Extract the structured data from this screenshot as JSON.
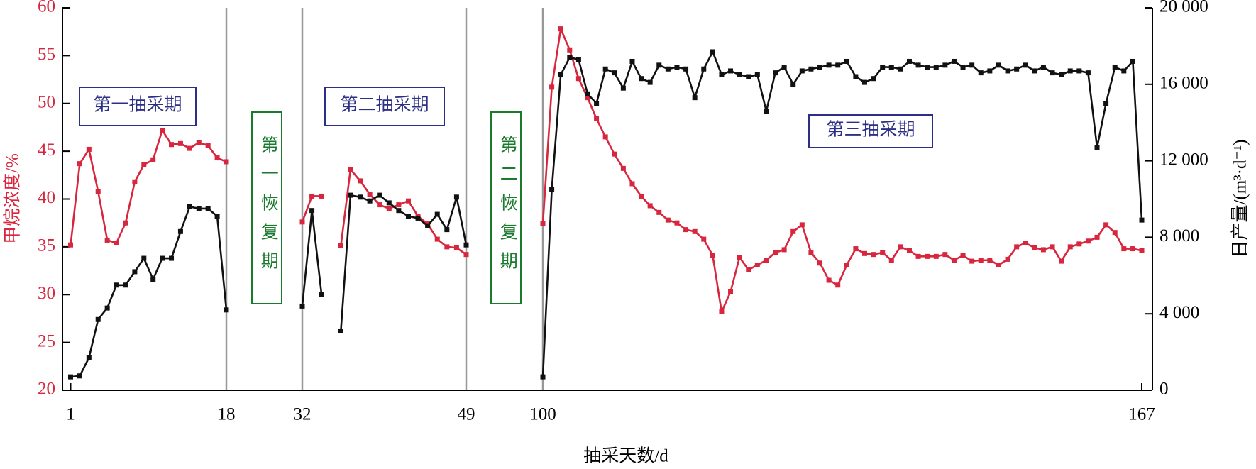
{
  "chart_data": {
    "type": "line",
    "x_label": "抽采天数/d",
    "y_label": "甲烷浓度/%",
    "y2_label": "日产量/(m³·d⁻¹)",
    "x": [
      1,
      2,
      3,
      4,
      5,
      6,
      7,
      8,
      9,
      10,
      11,
      12,
      13,
      14,
      15,
      16,
      17,
      18,
      32,
      33,
      34,
      35,
      36,
      37,
      38,
      39,
      40,
      41,
      42,
      43,
      44,
      45,
      46,
      47,
      48,
      49,
      100,
      101,
      102,
      103,
      104,
      105,
      106,
      107,
      108,
      109,
      110,
      111,
      112,
      113,
      114,
      115,
      116,
      117,
      118,
      119,
      120,
      121,
      122,
      123,
      124,
      125,
      126,
      127,
      128,
      129,
      130,
      131,
      132,
      133,
      134,
      135,
      136,
      137,
      138,
      139,
      140,
      141,
      142,
      143,
      144,
      145,
      146,
      147,
      148,
      149,
      150,
      151,
      152,
      153,
      154,
      155,
      156,
      157,
      158,
      159,
      160,
      161,
      162,
      163,
      164,
      165,
      166,
      167
    ],
    "xticks": [
      1,
      18,
      32,
      49,
      100,
      167
    ],
    "ylim": [
      20,
      60
    ],
    "yticks": [
      20,
      25,
      30,
      35,
      40,
      45,
      50,
      55,
      60
    ],
    "y2lim": [
      0,
      20000
    ],
    "y2ticks": [
      0,
      {
        "value": 4000,
        "label": "4 000"
      },
      {
        "value": 8000,
        "label": "8 000"
      },
      {
        "value": 12000,
        "label": "12 000"
      },
      {
        "value": 16000,
        "label": "16 000"
      },
      {
        "value": 20000,
        "label": "20 000"
      }
    ],
    "y_color": "#d7263d",
    "series": [
      {
        "color": "#d7263d",
        "values": [
          35.2,
          43.7,
          45.2,
          40.8,
          35.7,
          35.4,
          37.5,
          41.8,
          43.6,
          44.1,
          47.2,
          45.7,
          45.8,
          45.3,
          45.9,
          45.6,
          44.3,
          43.9,
          37.6,
          40.3,
          40.3,
          null,
          35.1,
          43.1,
          41.9,
          40.5,
          39.4,
          39.0,
          39.4,
          39.8,
          38.2,
          37.4,
          35.8,
          35.0,
          34.9,
          34.2,
          37.4,
          51.7,
          57.8,
          55.6,
          52.6,
          50.6,
          48.4,
          46.5,
          44.7,
          43.2,
          41.6,
          40.3,
          39.3,
          38.6,
          37.8,
          37.5,
          36.8,
          36.6,
          35.8,
          34.1,
          28.2,
          30.3,
          33.9,
          32.6,
          33.1,
          33.6,
          34.4,
          34.7,
          36.6,
          37.3,
          34.4,
          33.3,
          31.5,
          31.0,
          33.1,
          34.8,
          34.3,
          34.2,
          34.4,
          33.6,
          35.0,
          34.6,
          34.0,
          34.0,
          34.0,
          34.2,
          33.6,
          34.1,
          33.5,
          33.6,
          33.6,
          33.1,
          33.7,
          35.0,
          35.4,
          34.9,
          34.7,
          35.0,
          33.5,
          35.0,
          35.3,
          35.6,
          36.0,
          37.3,
          36.5,
          34.8,
          34.8,
          34.6
        ]
      },
      {
        "color": "#111111",
        "axis": "y2",
        "values": [
          700,
          750,
          1700,
          3700,
          4300,
          5500,
          5500,
          6200,
          6900,
          5800,
          6900,
          6900,
          8300,
          9600,
          9500,
          9500,
          9100,
          4200,
          4400,
          9400,
          5000,
          null,
          3100,
          10200,
          10100,
          9900,
          10200,
          9800,
          9400,
          9100,
          9000,
          8600,
          9200,
          8400,
          10100,
          7600,
          700,
          10500,
          16500,
          17400,
          17300,
          15500,
          15000,
          16800,
          16600,
          15800,
          17200,
          16300,
          16100,
          17000,
          16800,
          16900,
          16800,
          15300,
          16800,
          17700,
          16500,
          16700,
          16500,
          16400,
          16500,
          14600,
          16600,
          16900,
          16000,
          16700,
          16800,
          16900,
          17000,
          17000,
          17200,
          16400,
          16100,
          16300,
          16900,
          16900,
          16800,
          17200,
          17000,
          16900,
          16900,
          17000,
          17200,
          16900,
          17000,
          16600,
          16700,
          17000,
          16700,
          16800,
          17000,
          16700,
          16900,
          16600,
          16500,
          16700,
          16700,
          16600,
          12700,
          15000,
          16900,
          16700,
          17200,
          8900
        ]
      }
    ],
    "annotations": [
      {
        "text": "第一抽采期",
        "color": "#2b2f86"
      },
      {
        "text": "第一恢复期",
        "color": "#1a7a2e"
      },
      {
        "text": "第二抽采期",
        "color": "#2b2f86"
      },
      {
        "text": "第二恢复期",
        "color": "#1a7a2e"
      },
      {
        "text": "第三抽采期",
        "color": "#2b2f86"
      }
    ]
  }
}
